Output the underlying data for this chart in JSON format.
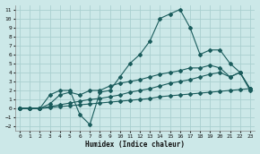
{
  "xlabel": "Humidex (Indice chaleur)",
  "ylabel": "",
  "background_color": "#cce8e8",
  "grid_color": "#aad0d0",
  "line_color": "#1a5c5c",
  "xlim": [
    -0.5,
    23.5
  ],
  "ylim": [
    -2.5,
    11.5
  ],
  "xticks": [
    0,
    1,
    2,
    3,
    4,
    5,
    6,
    7,
    8,
    9,
    10,
    11,
    12,
    13,
    14,
    15,
    16,
    17,
    18,
    19,
    20,
    21,
    22,
    23
  ],
  "yticks": [
    -2,
    -1,
    0,
    1,
    2,
    3,
    4,
    5,
    6,
    7,
    8,
    9,
    10,
    11
  ],
  "lines": [
    {
      "x": [
        0,
        1,
        2,
        3,
        4,
        5,
        6,
        7,
        8,
        9,
        10,
        11,
        12,
        13,
        14,
        15,
        16,
        17,
        18,
        19,
        20,
        21,
        22,
        23
      ],
      "y": [
        0,
        0,
        0,
        1.5,
        2,
        2,
        -0.7,
        -1.8,
        1.8,
        2,
        3.5,
        5,
        6,
        7.5,
        10,
        10.5,
        11,
        9,
        6,
        6.5,
        6.5,
        5,
        4,
        2
      ]
    },
    {
      "x": [
        0,
        1,
        2,
        3,
        4,
        5,
        6,
        7,
        8,
        9,
        10,
        11,
        12,
        13,
        14,
        15,
        16,
        17,
        18,
        19,
        20,
        21,
        22,
        23
      ],
      "y": [
        0,
        0,
        0,
        0.5,
        1.5,
        1.8,
        1.5,
        2.0,
        2.0,
        2.5,
        2.8,
        3.0,
        3.2,
        3.5,
        3.8,
        4.0,
        4.2,
        4.5,
        4.5,
        4.8,
        4.5,
        3.5,
        4.0,
        2.2
      ]
    },
    {
      "x": [
        0,
        1,
        2,
        3,
        4,
        5,
        6,
        7,
        8,
        9,
        10,
        11,
        12,
        13,
        14,
        15,
        16,
        17,
        18,
        19,
        20,
        21,
        22,
        23
      ],
      "y": [
        0,
        0,
        0,
        0.2,
        0.4,
        0.6,
        0.8,
        1.0,
        1.1,
        1.3,
        1.5,
        1.8,
        2.0,
        2.2,
        2.5,
        2.8,
        3.0,
        3.2,
        3.5,
        3.8,
        4.0,
        3.5,
        4.0,
        2.2
      ]
    },
    {
      "x": [
        0,
        1,
        2,
        3,
        4,
        5,
        6,
        7,
        8,
        9,
        10,
        11,
        12,
        13,
        14,
        15,
        16,
        17,
        18,
        19,
        20,
        21,
        22,
        23
      ],
      "y": [
        0,
        0,
        0,
        0.1,
        0.2,
        0.3,
        0.4,
        0.5,
        0.6,
        0.7,
        0.8,
        0.9,
        1.0,
        1.1,
        1.3,
        1.4,
        1.5,
        1.6,
        1.7,
        1.8,
        1.9,
        2.0,
        2.1,
        2.2
      ]
    }
  ]
}
